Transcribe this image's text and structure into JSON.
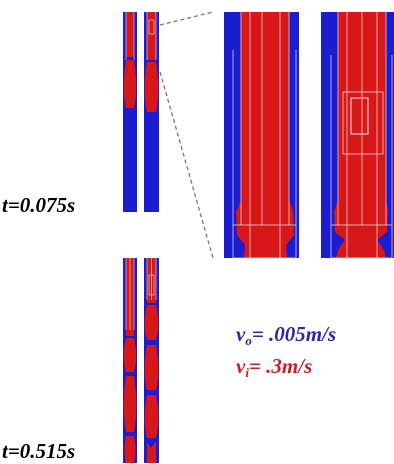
{
  "time_labels": {
    "top": "t=0.075s",
    "bottom": "t=0.515s"
  },
  "legend": {
    "outer": {
      "symbol": "v",
      "subscript": "o",
      "value": "= .005m/s",
      "color": "#2a2aa8"
    },
    "inner": {
      "symbol": "v",
      "subscript": "i",
      "value": "= .3m/s",
      "color": "#c8202a"
    }
  },
  "colors": {
    "outer_fluid": "#1d1dd0",
    "inner_fluid": "#d81818",
    "mesh_lines": "#e8e8e8",
    "zoom_lines": "#777777"
  }
}
